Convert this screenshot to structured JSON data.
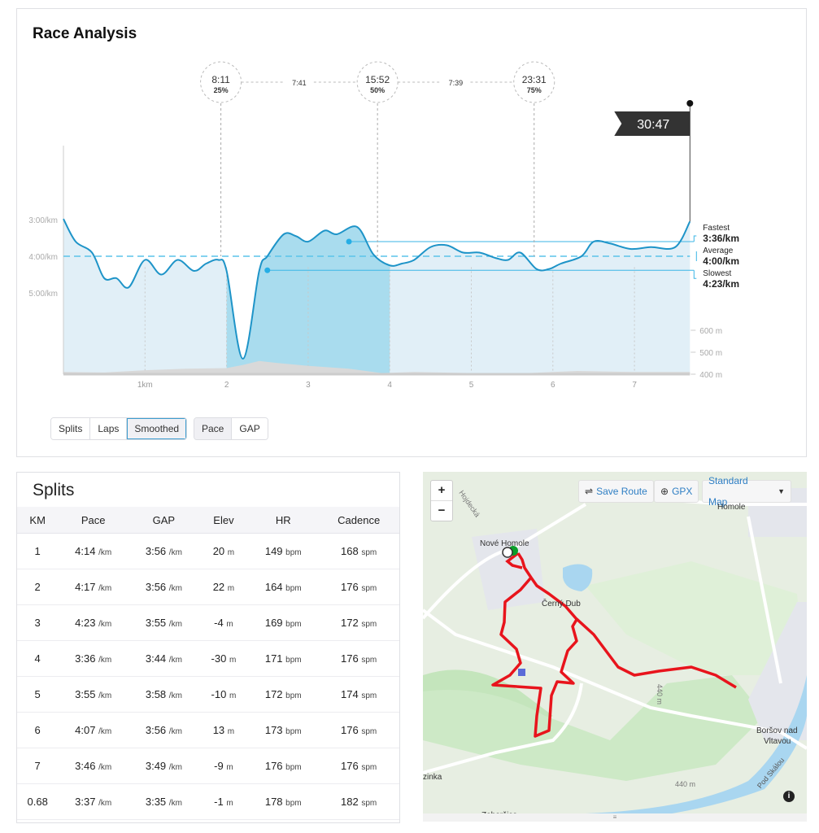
{
  "analysis": {
    "title": "Race Analysis",
    "checkpoints": [
      {
        "time": "8:11",
        "pct": "25%",
        "km": 1.93
      },
      {
        "time": "15:52",
        "pct": "50%",
        "km": 3.85
      },
      {
        "time": "23:31",
        "pct": "75%",
        "km": 5.77
      }
    ],
    "intervals": [
      "7:41",
      "7:39"
    ],
    "finish_time": "30:47",
    "legend": {
      "fastest_label": "Fastest",
      "fastest_value": "3:36/km",
      "average_label": "Average",
      "average_value": "4:00/km",
      "slowest_label": "Slowest",
      "slowest_value": "4:23/km"
    },
    "view_buttons": [
      "Splits",
      "Laps",
      "Smoothed"
    ],
    "active_view": "Smoothed",
    "metric_buttons": [
      "Pace",
      "GAP"
    ],
    "active_metric": "Pace"
  },
  "chart_data": {
    "type": "area",
    "xlabel": "km",
    "x_ticks": [
      "1km",
      "2",
      "3",
      "4",
      "5",
      "6",
      "7"
    ],
    "x_range": [
      0,
      7.68
    ],
    "pace_ticks": [
      "3:00/km",
      "4:00/km",
      "5:00/km"
    ],
    "elev_ticks": [
      "600 m",
      "500 m",
      "400 m"
    ],
    "highlight_km": [
      2,
      4
    ],
    "fastest_pace_min": 3.6,
    "average_pace_min": 4.0,
    "slowest_pace_min": 4.383,
    "fastest_marker_km": 3.5,
    "slowest_marker_km": 2.5,
    "pace_series": {
      "km": [
        0,
        0.15,
        0.35,
        0.5,
        0.65,
        0.8,
        1.0,
        1.2,
        1.4,
        1.6,
        1.75,
        1.9,
        2.0,
        2.2,
        2.4,
        2.5,
        2.7,
        2.85,
        3.0,
        3.2,
        3.35,
        3.6,
        3.8,
        4.0,
        4.15,
        4.3,
        4.5,
        4.7,
        4.9,
        5.1,
        5.3,
        5.45,
        5.6,
        5.8,
        5.95,
        6.1,
        6.35,
        6.5,
        6.7,
        6.95,
        7.2,
        7.5,
        7.68
      ],
      "pace": [
        2.98,
        3.6,
        3.9,
        4.6,
        4.6,
        4.85,
        4.1,
        4.5,
        4.1,
        4.4,
        4.2,
        4.1,
        4.4,
        6.8,
        4.4,
        4.0,
        3.4,
        3.45,
        3.6,
        3.3,
        3.4,
        3.2,
        3.95,
        4.25,
        4.2,
        4.1,
        3.75,
        3.7,
        3.9,
        3.9,
        4.05,
        4.1,
        3.9,
        4.35,
        4.35,
        4.2,
        4.0,
        3.6,
        3.65,
        3.8,
        3.75,
        3.75,
        3.05
      ]
    },
    "elevation_series": {
      "km": [
        0,
        0.5,
        1,
        1.5,
        2,
        2.2,
        2.4,
        2.6,
        3,
        3.5,
        3.9,
        4.3,
        5,
        5.5,
        6,
        6.3,
        7,
        7.68
      ],
      "elev": [
        410,
        408,
        418,
        425,
        428,
        442,
        460,
        452,
        438,
        425,
        405,
        410,
        405,
        402,
        410,
        415,
        410,
        410
      ]
    }
  },
  "splits": {
    "title": "Splits",
    "columns": [
      "KM",
      "Pace",
      "GAP",
      "Elev",
      "HR",
      "Cadence"
    ],
    "rows": [
      {
        "km": "1",
        "pace": "4:14",
        "gap": "3:56",
        "elev": "20",
        "hr": "149",
        "cad": "168"
      },
      {
        "km": "2",
        "pace": "4:17",
        "gap": "3:56",
        "elev": "22",
        "hr": "164",
        "cad": "176"
      },
      {
        "km": "3",
        "pace": "4:23",
        "gap": "3:55",
        "elev": "-4",
        "hr": "169",
        "cad": "172"
      },
      {
        "km": "4",
        "pace": "3:36",
        "gap": "3:44",
        "elev": "-30",
        "hr": "171",
        "cad": "176"
      },
      {
        "km": "5",
        "pace": "3:55",
        "gap": "3:58",
        "elev": "-10",
        "hr": "172",
        "cad": "174"
      },
      {
        "km": "6",
        "pace": "4:07",
        "gap": "3:56",
        "elev": "13",
        "hr": "173",
        "cad": "176"
      },
      {
        "km": "7",
        "pace": "3:46",
        "gap": "3:49",
        "elev": "-9",
        "hr": "176",
        "cad": "176"
      },
      {
        "km": "0.68",
        "pace": "3:37",
        "gap": "3:35",
        "elev": "-1",
        "hr": "178",
        "cad": "182"
      }
    ],
    "units": {
      "pace": "/km",
      "gap": "/km",
      "elev": "m",
      "hr": "bpm",
      "cad": "spm"
    }
  },
  "map": {
    "zoom_in": "+",
    "zoom_out": "−",
    "save_route": "Save Route",
    "gpx": "GPX",
    "map_style": "Standard Map",
    "labels": [
      "Nové Homole",
      "Homole",
      "Černý Dub",
      "Boršov nad",
      "Vltavou",
      "Hojdecká",
      "440 m",
      "440 m",
      "Pod Skálou",
      "Zaboršice",
      "zinka"
    ],
    "colors": {
      "route": "#e8141c",
      "water": "#a9d6f0",
      "forest": "#bfe3b8"
    }
  }
}
